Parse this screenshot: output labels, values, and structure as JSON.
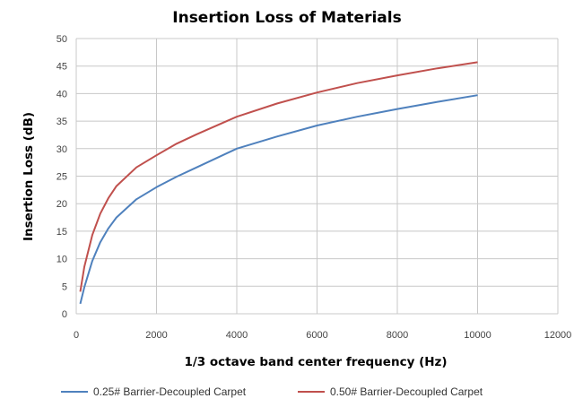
{
  "chart_data": {
    "type": "line",
    "title": "Insertion Loss of Materials",
    "xlabel": "1/3 octave band center frequency  (Hz)",
    "ylabel": "Insertion Loss  (dB)",
    "xlim": [
      0,
      12000
    ],
    "ylim": [
      0,
      50
    ],
    "xticks": [
      "0",
      "2000",
      "4000",
      "6000",
      "8000",
      "10000",
      "12000"
    ],
    "yticks": [
      "0",
      "5",
      "10",
      "15",
      "20",
      "25",
      "30",
      "35",
      "40",
      "45",
      "50"
    ],
    "grid": true,
    "legend_position": "bottom",
    "series": [
      {
        "name": "0.25# Barrier-Decoupled  Carpet",
        "color": "#4f81bd",
        "x": [
          100,
          200,
          400,
          600,
          800,
          1000,
          1500,
          2000,
          2500,
          3000,
          4000,
          5000,
          6000,
          7000,
          8000,
          9000,
          10000
        ],
        "y": [
          1.8,
          4.8,
          9.6,
          13.0,
          15.5,
          17.5,
          20.8,
          23.0,
          24.9,
          26.6,
          30.0,
          32.2,
          34.2,
          35.8,
          37.2,
          38.5,
          39.7
        ]
      },
      {
        "name": "0.50# Barrier-Decoupled  Carpet",
        "color": "#c0504d",
        "x": [
          100,
          200,
          400,
          600,
          800,
          1000,
          1500,
          2000,
          2500,
          3000,
          4000,
          5000,
          6000,
          7000,
          8000,
          9000,
          10000
        ],
        "y": [
          4.0,
          8.5,
          14.3,
          18.2,
          21.0,
          23.2,
          26.6,
          28.8,
          30.9,
          32.6,
          35.8,
          38.2,
          40.2,
          41.9,
          43.3,
          44.6,
          45.7
        ]
      }
    ]
  }
}
